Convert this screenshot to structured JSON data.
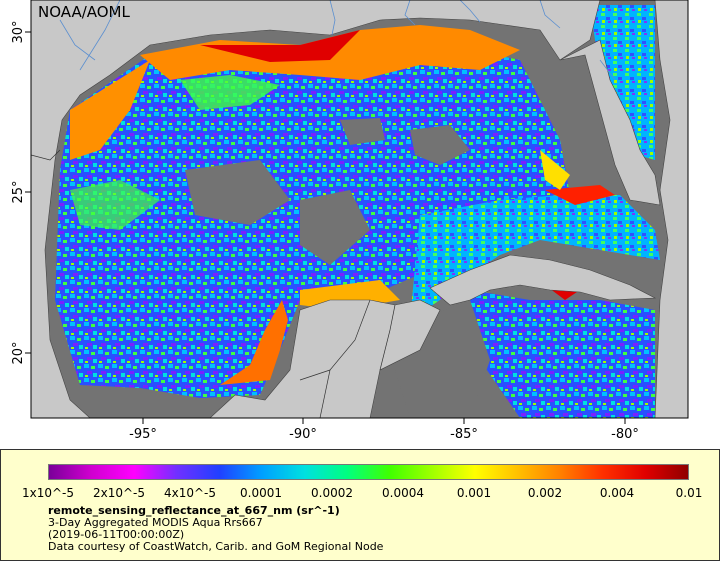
{
  "map": {
    "source_label": "NOAA/AOML",
    "lon_labels": [
      "-95°",
      "-90°",
      "-85°",
      "-80°"
    ],
    "lat_labels": [
      "30°",
      "25°",
      "20°"
    ],
    "colors": {
      "ocean_nodata": "#737373",
      "land": "#c8c8c8",
      "border": "#333333",
      "river": "#5b8fd0"
    }
  },
  "legend": {
    "scale": "log",
    "colorbar_stops": [
      "#7a0099",
      "#d000d0",
      "#ff00ff",
      "#7030ff",
      "#2040ff",
      "#00a0ff",
      "#00e0e0",
      "#00ff80",
      "#40ff00",
      "#a0ff00",
      "#ffff00",
      "#ffc000",
      "#ff8000",
      "#ff3000",
      "#e00000",
      "#900000"
    ],
    "tick_labels": [
      "1x10^-5",
      "2x10^-5",
      "4x10^-5",
      "0.0001",
      "0.0002",
      "0.0004",
      "0.001",
      "0.002",
      "0.004",
      "0.01"
    ],
    "variable": "remote_sensing_reflectance_at_667_nm (sr^-1)",
    "description": "3-Day Aggregated MODIS Aqua Rrs667",
    "date": "(2019-06-11T00:00:00Z)",
    "credit": "Data courtesy of CoastWatch, Carib. and GoM Regional Node"
  }
}
